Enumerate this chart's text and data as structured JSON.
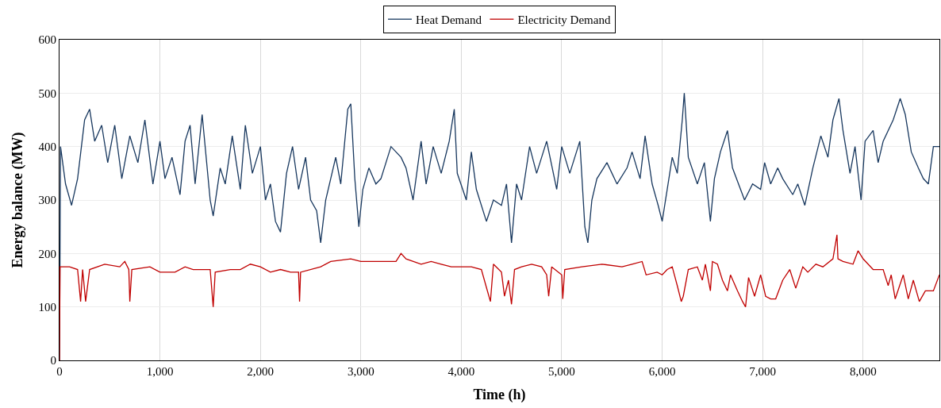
{
  "chart_data": {
    "type": "line",
    "xlabel": "Time (h)",
    "ylabel": "Energy balance (MW)",
    "xlim": [
      0,
      8760
    ],
    "ylim": [
      0,
      600
    ],
    "xticks": [
      0,
      {
        "value": 1000,
        "label": "1,000"
      },
      {
        "value": 2000,
        "label": "2,000"
      },
      {
        "value": 3000,
        "label": "3,000"
      },
      {
        "value": 4000,
        "label": "4,000"
      },
      {
        "value": 5000,
        "label": "5,000"
      },
      {
        "value": 6000,
        "label": "6,000"
      },
      {
        "value": 7000,
        "label": "7,000"
      },
      {
        "value": 8000,
        "label": "8,000"
      }
    ],
    "yticks": [
      0,
      100,
      200,
      300,
      400,
      500,
      600
    ],
    "grid": true,
    "legend": "top",
    "marker": "none",
    "line_style": "solid",
    "series": [
      {
        "name": "Heat Demand",
        "color": "#17375e",
        "x": [
          0,
          10,
          60,
          120,
          180,
          250,
          300,
          350,
          420,
          480,
          550,
          620,
          700,
          780,
          850,
          930,
          1000,
          1050,
          1120,
          1200,
          1250,
          1300,
          1350,
          1420,
          1500,
          1530,
          1600,
          1650,
          1720,
          1800,
          1850,
          1920,
          2000,
          2050,
          2100,
          2150,
          2200,
          2260,
          2320,
          2380,
          2450,
          2500,
          2560,
          2600,
          2650,
          2700,
          2750,
          2800,
          2870,
          2900,
          2940,
          2980,
          3020,
          3080,
          3150,
          3200,
          3300,
          3400,
          3450,
          3520,
          3600,
          3650,
          3720,
          3800,
          3880,
          3930,
          3960,
          4050,
          4100,
          4150,
          4250,
          4320,
          4400,
          4450,
          4500,
          4550,
          4600,
          4680,
          4750,
          4850,
          4950,
          5000,
          5080,
          5180,
          5230,
          5260,
          5300,
          5350,
          5450,
          5550,
          5650,
          5700,
          5780,
          5830,
          5900,
          5960,
          6000,
          6050,
          6100,
          6150,
          6200,
          6220,
          6260,
          6350,
          6420,
          6480,
          6520,
          6580,
          6650,
          6700,
          6760,
          6820,
          6900,
          6980,
          7020,
          7080,
          7150,
          7200,
          7300,
          7350,
          7420,
          7500,
          7580,
          7650,
          7700,
          7760,
          7800,
          7870,
          7920,
          7980,
          8020,
          8100,
          8150,
          8200,
          8300,
          8370,
          8420,
          8480,
          8550,
          8600,
          8650,
          8700,
          8760
        ],
        "values": [
          0,
          400,
          330,
          290,
          340,
          450,
          470,
          410,
          440,
          370,
          440,
          340,
          420,
          370,
          450,
          330,
          410,
          340,
          380,
          310,
          410,
          440,
          330,
          460,
          300,
          270,
          360,
          330,
          420,
          320,
          440,
          350,
          400,
          300,
          330,
          260,
          240,
          350,
          400,
          320,
          380,
          300,
          280,
          220,
          300,
          340,
          380,
          330,
          470,
          480,
          340,
          250,
          320,
          360,
          330,
          340,
          400,
          380,
          360,
          300,
          410,
          330,
          400,
          350,
          410,
          470,
          350,
          300,
          390,
          320,
          260,
          300,
          290,
          330,
          220,
          330,
          300,
          400,
          350,
          410,
          320,
          400,
          350,
          410,
          250,
          220,
          300,
          340,
          370,
          330,
          360,
          390,
          340,
          420,
          330,
          290,
          260,
          320,
          380,
          350,
          450,
          500,
          380,
          330,
          370,
          260,
          340,
          390,
          430,
          360,
          330,
          300,
          330,
          320,
          370,
          330,
          360,
          340,
          310,
          330,
          290,
          360,
          420,
          380,
          450,
          490,
          430,
          350,
          400,
          300,
          410,
          430,
          370,
          410,
          450,
          490,
          460,
          390,
          360,
          340,
          330,
          400,
          400
        ]
      },
      {
        "name": "Electricity Demand",
        "color": "#c00000",
        "x": [
          0,
          5,
          100,
          180,
          210,
          230,
          260,
          300,
          450,
          600,
          650,
          690,
          700,
          720,
          900,
          1000,
          1150,
          1250,
          1330,
          1400,
          1500,
          1530,
          1550,
          1700,
          1800,
          1900,
          2000,
          2100,
          2200,
          2300,
          2380,
          2390,
          2400,
          2600,
          2700,
          2900,
          3000,
          3100,
          3200,
          3350,
          3400,
          3450,
          3600,
          3700,
          3800,
          3900,
          4000,
          4100,
          4200,
          4260,
          4290,
          4320,
          4400,
          4430,
          4470,
          4500,
          4530,
          4600,
          4700,
          4800,
          4850,
          4870,
          4900,
          5000,
          5010,
          5030,
          5200,
          5400,
          5600,
          5700,
          5800,
          5840,
          5950,
          6000,
          6050,
          6100,
          6150,
          6190,
          6210,
          6260,
          6350,
          6400,
          6430,
          6480,
          6500,
          6550,
          6600,
          6650,
          6680,
          6750,
          6800,
          6830,
          6860,
          6920,
          6980,
          7030,
          7080,
          7130,
          7200,
          7270,
          7330,
          7400,
          7450,
          7530,
          7600,
          7700,
          7740,
          7750,
          7800,
          7900,
          7950,
          8000,
          8050,
          8100,
          8200,
          8250,
          8280,
          8320,
          8400,
          8450,
          8500,
          8560,
          8620,
          8700,
          8760
        ],
        "values": [
          0,
          175,
          175,
          170,
          110,
          170,
          110,
          170,
          180,
          175,
          185,
          170,
          110,
          170,
          175,
          165,
          165,
          175,
          170,
          170,
          170,
          100,
          165,
          170,
          170,
          180,
          175,
          165,
          170,
          165,
          165,
          110,
          165,
          175,
          185,
          190,
          185,
          185,
          185,
          185,
          200,
          190,
          180,
          185,
          180,
          175,
          175,
          175,
          170,
          130,
          110,
          180,
          165,
          120,
          150,
          105,
          170,
          175,
          180,
          175,
          160,
          120,
          175,
          160,
          115,
          170,
          175,
          180,
          175,
          180,
          185,
          160,
          165,
          160,
          170,
          175,
          140,
          110,
          120,
          170,
          175,
          150,
          180,
          130,
          185,
          180,
          150,
          130,
          160,
          130,
          110,
          100,
          155,
          120,
          160,
          120,
          115,
          115,
          150,
          170,
          135,
          175,
          165,
          180,
          175,
          190,
          235,
          190,
          185,
          180,
          205,
          190,
          180,
          170,
          170,
          140,
          160,
          115,
          160,
          115,
          150,
          110,
          130,
          130,
          160
        ]
      }
    ]
  }
}
